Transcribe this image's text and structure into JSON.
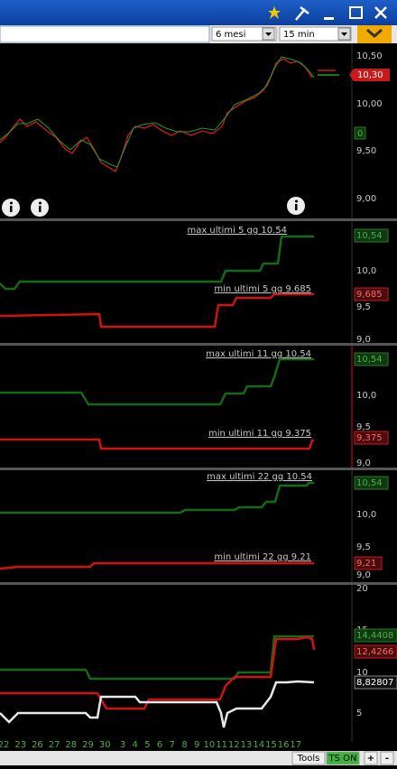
{
  "toolbar": {
    "period": "6 mesi",
    "interval": "15 min"
  },
  "main_panel": {
    "axis_labels": [
      "10,50",
      "10,00",
      "9,50",
      "9,00"
    ],
    "price_label": "10,30",
    "indicator_label": "0"
  },
  "panels": [
    {
      "max_label": "max ultimi 5 gg 10.54",
      "min_label": "min ultimi 5 gg 9.685",
      "max_value": "10,54",
      "min_value": "9,685",
      "axis_labels": [
        "10,0",
        "9,5",
        "9,0"
      ]
    },
    {
      "max_label": "max ultimi 11 gg 10.54",
      "min_label": "min ultimi 11 gg 9.375",
      "max_value": "10,54",
      "min_value": "9,375",
      "axis_labels": [
        "10,0",
        "9,5",
        "9,0"
      ]
    },
    {
      "max_label": "max ultimi 22 gg 10.54",
      "min_label": "min ultimi 22 gg 9.21",
      "max_value": "10,54",
      "min_value": "9,21",
      "axis_labels": [
        "10,0",
        "9,5",
        "9,0"
      ]
    }
  ],
  "oscillator_panel": {
    "axis_labels": [
      "20",
      "15",
      "10",
      "5"
    ],
    "values": [
      "14,4408",
      "12,4266",
      "8,82807"
    ]
  },
  "x_axis": [
    "22",
    "23",
    "26",
    "27",
    "28",
    "29",
    "30",
    "3",
    "4",
    "5",
    "6",
    "7",
    "8",
    "9",
    "10",
    "11",
    "12",
    "13",
    "14",
    "15",
    "16",
    "17"
  ],
  "status_bar": {
    "tools": "Tools",
    "ts": "TS ON",
    "plus": "+",
    "minus": "-"
  }
}
